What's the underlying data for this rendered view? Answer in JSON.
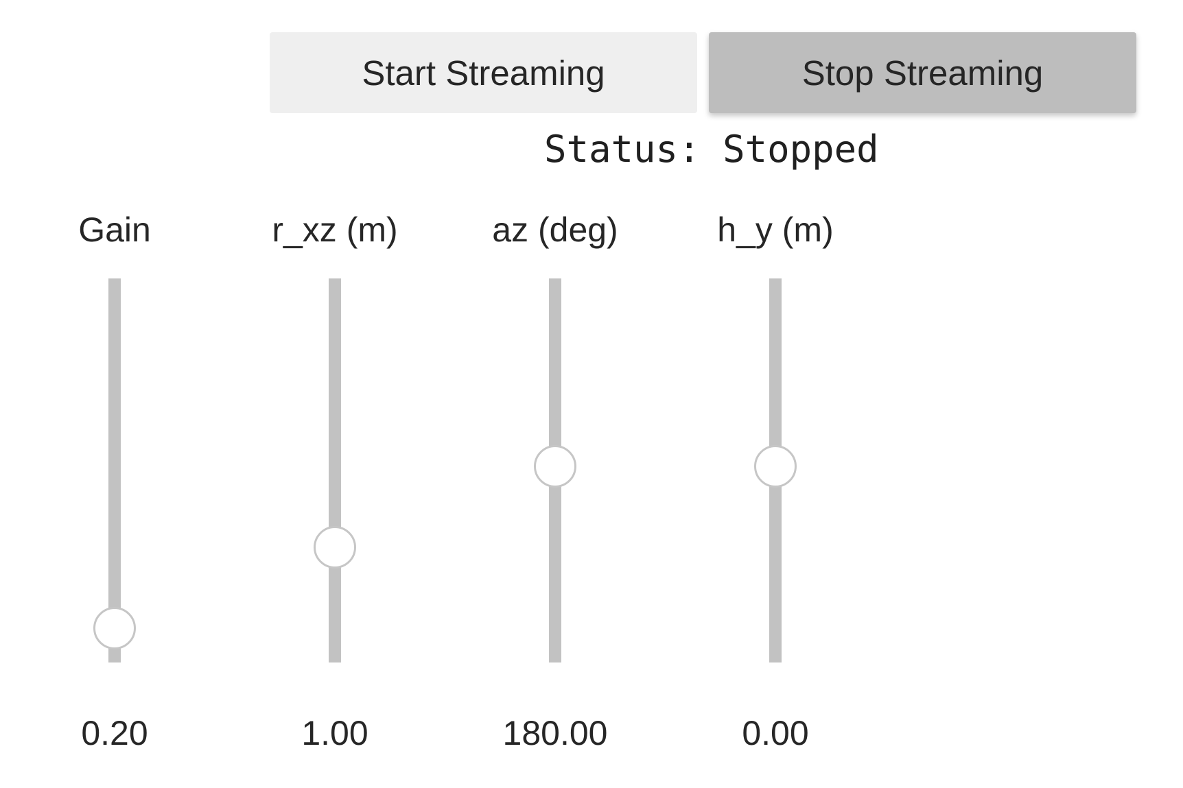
{
  "controls": {
    "start_label": "Start Streaming",
    "stop_label": "Stop Streaming"
  },
  "status": {
    "text": "Status: Stopped"
  },
  "sliders": [
    {
      "label": "Gain",
      "value": "0.20",
      "level": 0.09
    },
    {
      "label": "r_xz (m)",
      "value": "1.00",
      "level": 0.3
    },
    {
      "label": "az (deg)",
      "value": "180.00",
      "level": 0.51
    },
    {
      "label": "h_y (m)",
      "value": "0.00",
      "level": 0.51
    }
  ]
}
